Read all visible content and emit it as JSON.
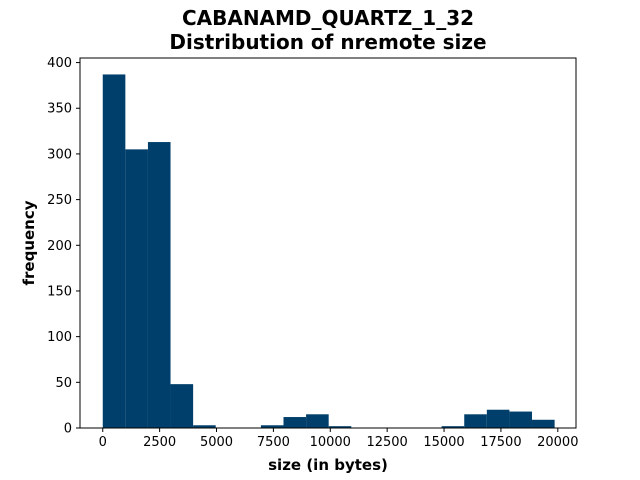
{
  "chart_data": {
    "type": "bar",
    "title_line1": "CABANAMD_QUARTZ_1_32",
    "title_line2": "Distribution of nremote size",
    "xlabel": "size (in bytes)",
    "ylabel": "frequency",
    "xlim": [
      -1000,
      20800
    ],
    "ylim": [
      0,
      405
    ],
    "xticks": [
      0,
      2500,
      5000,
      7500,
      10000,
      12500,
      15000,
      17500,
      20000
    ],
    "yticks": [
      0,
      50,
      100,
      150,
      200,
      250,
      300,
      350,
      400
    ],
    "bar_color": "#003f6b",
    "bin_edges": [
      0,
      993,
      1986,
      2979,
      3972,
      4965,
      5958,
      6951,
      7944,
      8937,
      9930,
      10923,
      11916,
      12909,
      13902,
      14895,
      15888,
      16881,
      17874,
      18867,
      19860
    ],
    "values": [
      387,
      305,
      313,
      48,
      3,
      0,
      0,
      3,
      12,
      15,
      2,
      0,
      0,
      0,
      0,
      2,
      15,
      20,
      18,
      9
    ]
  }
}
